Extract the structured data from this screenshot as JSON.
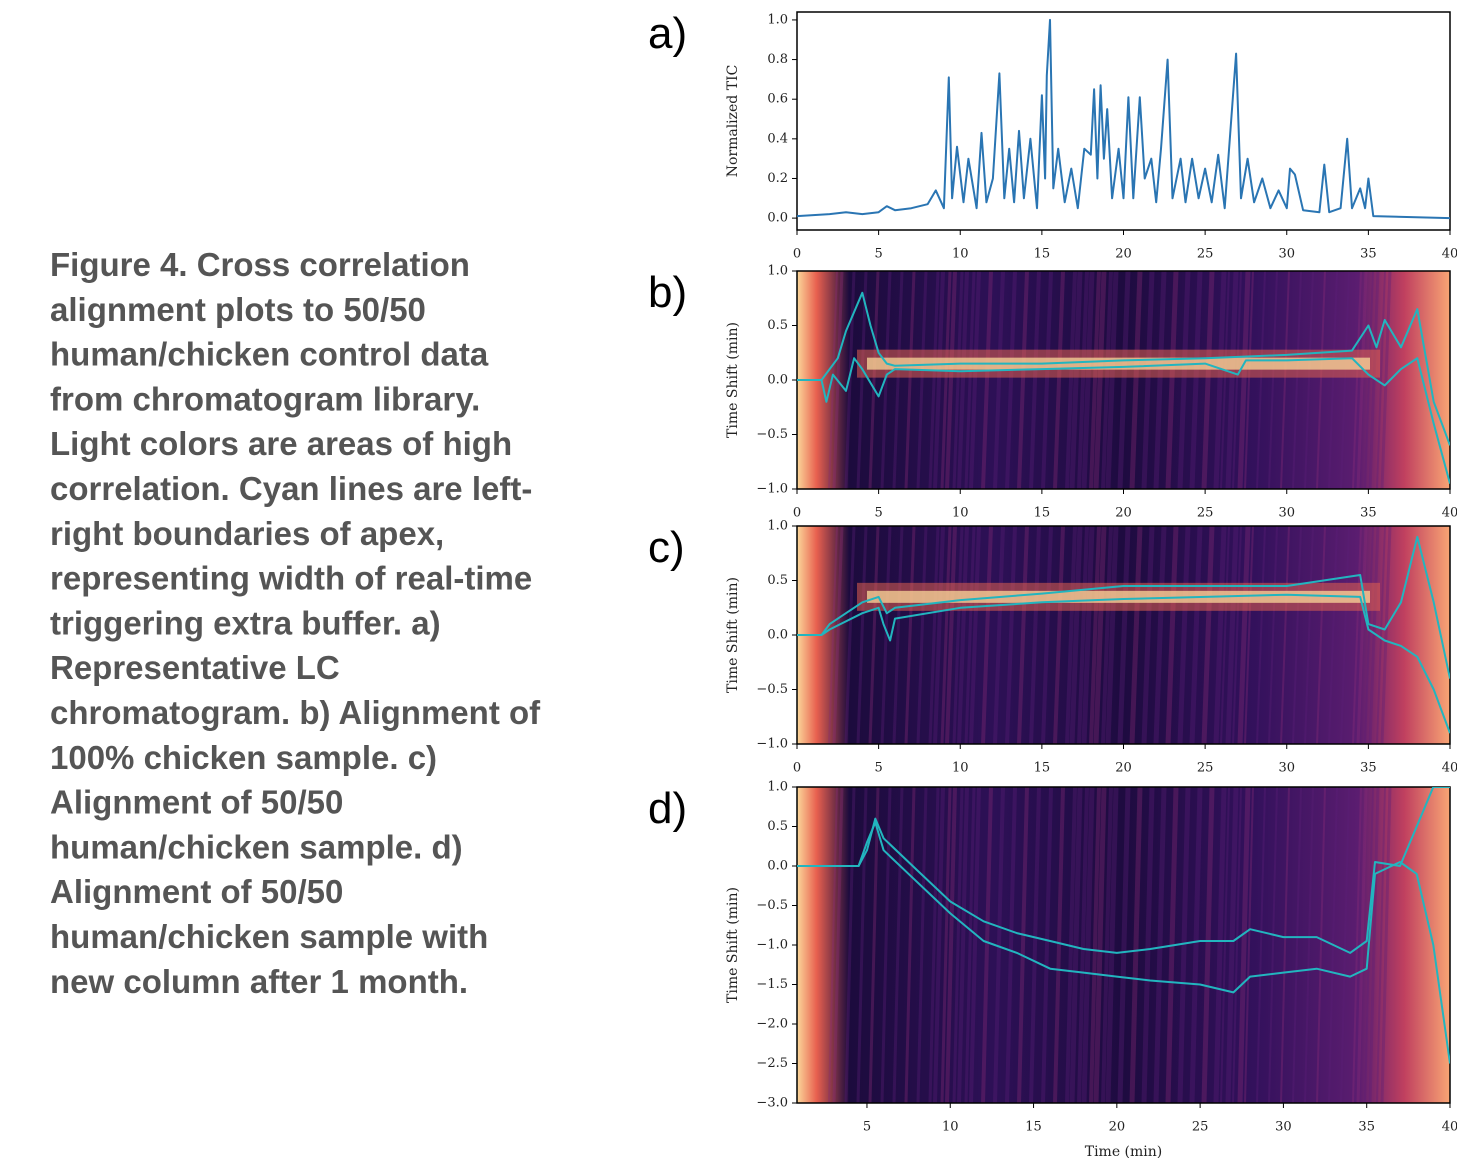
{
  "caption_lines": [
    "Figure 4.  Cross correlation",
    "alignment plots to 50/50",
    "human/chicken control data",
    "from chromatogram library.",
    "Light colors are areas of high",
    "correlation.  Cyan lines are left-",
    "right boundaries of apex,",
    "representing width of real-time",
    "triggering extra buffer.  a)",
    "Representative LC",
    "chromatogram. b) Alignment of",
    "100% chicken sample.  c)",
    "Alignment of 50/50",
    "human/chicken sample. d)",
    "Alignment of 50/50",
    "human/chicken sample with",
    "new column after 1 month."
  ],
  "chart_data": [
    {
      "type": "line",
      "label": "a)",
      "y_label": "Normalized TIC",
      "xlim": [
        0,
        40
      ],
      "ylim": [
        -0.06,
        1.04
      ],
      "xticks": [
        0,
        5,
        10,
        15,
        20,
        25,
        30,
        35,
        40
      ],
      "yticks": [
        {
          "value": 0,
          "label": "0.0"
        },
        0.2,
        0.4,
        0.6,
        0.8,
        {
          "value": 1,
          "label": "1.0"
        }
      ],
      "series": [
        {
          "color": "#2a75b3",
          "x": [
            0,
            2,
            3,
            4,
            5,
            5.5,
            6,
            7,
            8,
            8.5,
            9,
            9.3,
            9.5,
            9.8,
            10.2,
            10.5,
            11,
            11.3,
            11.6,
            12,
            12.4,
            12.7,
            13,
            13.3,
            13.6,
            13.9,
            14.3,
            14.7,
            15,
            15.2,
            15.3,
            15.5,
            15.7,
            16,
            16.4,
            16.8,
            17.2,
            17.6,
            18,
            18.2,
            18.4,
            18.6,
            18.8,
            19,
            19.3,
            19.7,
            20,
            20.3,
            20.6,
            21,
            21.3,
            21.7,
            22,
            22.3,
            22.7,
            23,
            23.5,
            23.8,
            24.2,
            24.6,
            25,
            25.4,
            25.8,
            26.2,
            26.9,
            27.2,
            27.6,
            28,
            28.5,
            29,
            29.5,
            30,
            30.2,
            30.5,
            31,
            32,
            32.3,
            32.6,
            33.3,
            33.7,
            34,
            34.5,
            34.8,
            35,
            35.3,
            40
          ],
          "values": [
            0.01,
            0.02,
            0.03,
            0.02,
            0.03,
            0.06,
            0.04,
            0.05,
            0.07,
            0.14,
            0.05,
            0.71,
            0.1,
            0.36,
            0.08,
            0.3,
            0.05,
            0.43,
            0.08,
            0.2,
            0.73,
            0.1,
            0.35,
            0.08,
            0.44,
            0.1,
            0.4,
            0.05,
            0.62,
            0.2,
            0.72,
            1.0,
            0.15,
            0.35,
            0.08,
            0.25,
            0.05,
            0.35,
            0.32,
            0.65,
            0.2,
            0.67,
            0.3,
            0.55,
            0.1,
            0.35,
            0.1,
            0.61,
            0.1,
            0.61,
            0.2,
            0.3,
            0.08,
            0.35,
            0.8,
            0.1,
            0.3,
            0.08,
            0.3,
            0.1,
            0.25,
            0.08,
            0.32,
            0.05,
            0.83,
            0.1,
            0.3,
            0.08,
            0.2,
            0.05,
            0.14,
            0.05,
            0.25,
            0.22,
            0.04,
            0.03,
            0.27,
            0.03,
            0.05,
            0.4,
            0.05,
            0.15,
            0.05,
            0.2,
            0.01,
            0.0
          ]
        }
      ]
    },
    {
      "type": "line",
      "label": "b)",
      "y_label": "Time Shift (min)",
      "xlim": [
        0,
        40
      ],
      "ylim": [
        -1,
        1
      ],
      "xticks": [
        0,
        5,
        10,
        15,
        20,
        25,
        30,
        35,
        40
      ],
      "yticks": [
        {
          "value": -1,
          "label": "−1.0"
        },
        {
          "value": -0.5,
          "label": "−0.5"
        },
        {
          "value": 0,
          "label": "0.0"
        },
        0.5,
        {
          "value": 1,
          "label": "1.0"
        }
      ],
      "series": [
        {
          "color": "#22b5bf",
          "x": [
            0,
            1.5,
            1.8,
            2.2,
            3,
            3.5,
            4,
            5,
            5.5,
            6,
            10,
            15,
            20,
            25,
            27,
            27.5,
            30,
            34,
            35,
            36,
            37,
            38,
            39,
            40
          ],
          "values": [
            0,
            0,
            -0.2,
            0.05,
            -0.1,
            0.2,
            0.1,
            -0.15,
            0.05,
            0.1,
            0.08,
            0.1,
            0.12,
            0.15,
            0.05,
            0.18,
            0.18,
            0.2,
            0.05,
            -0.05,
            0.1,
            0.2,
            -0.4,
            -0.95
          ]
        },
        {
          "color": "#22b5bf",
          "x": [
            0,
            1.5,
            2.5,
            3,
            4,
            4.5,
            5,
            5.5,
            6,
            10,
            15,
            20,
            25,
            30,
            34,
            35,
            35.5,
            36,
            37,
            38,
            39,
            40
          ],
          "values": [
            0,
            0,
            0.2,
            0.45,
            0.8,
            0.5,
            0.25,
            0.15,
            0.13,
            0.15,
            0.15,
            0.18,
            0.2,
            0.23,
            0.27,
            0.5,
            0.3,
            0.55,
            0.3,
            0.65,
            -0.2,
            -0.6
          ]
        }
      ]
    },
    {
      "type": "line",
      "label": "c)",
      "y_label": "Time Shift (min)",
      "xlim": [
        0,
        40
      ],
      "ylim": [
        -1,
        1
      ],
      "xticks": [
        0,
        5,
        10,
        15,
        20,
        25,
        30,
        35,
        40
      ],
      "yticks": [
        {
          "value": -1,
          "label": "−1.0"
        },
        {
          "value": -0.5,
          "label": "−0.5"
        },
        {
          "value": 0,
          "label": "0.0"
        },
        0.5,
        {
          "value": 1,
          "label": "1.0"
        }
      ],
      "series": [
        {
          "color": "#22b5bf",
          "x": [
            0,
            1.5,
            2,
            4,
            5,
            5.3,
            5.7,
            6,
            10,
            15,
            20,
            25,
            30,
            34.5,
            35,
            36,
            37,
            38,
            39,
            40
          ],
          "values": [
            0,
            0,
            0.05,
            0.2,
            0.25,
            0.1,
            -0.05,
            0.15,
            0.25,
            0.3,
            0.33,
            0.35,
            0.37,
            0.35,
            0.05,
            -0.05,
            -0.1,
            -0.2,
            -0.5,
            -0.9
          ]
        },
        {
          "color": "#22b5bf",
          "x": [
            0,
            1.5,
            2,
            4,
            5,
            5.5,
            6,
            10,
            15,
            20,
            25,
            30,
            34.5,
            35,
            36,
            37,
            38,
            39,
            40
          ],
          "values": [
            0,
            0,
            0.1,
            0.3,
            0.35,
            0.2,
            0.25,
            0.32,
            0.38,
            0.45,
            0.45,
            0.45,
            0.55,
            0.1,
            0.05,
            0.3,
            0.9,
            0.3,
            -0.4
          ]
        }
      ]
    },
    {
      "type": "line",
      "label": "d)",
      "y_label": "Time Shift (min)",
      "x_label": "Time (min)",
      "xlim": [
        0.8,
        40
      ],
      "ylim": [
        -3,
        1
      ],
      "xticks": [
        5,
        10,
        15,
        20,
        25,
        30,
        35,
        40
      ],
      "yticks": [
        {
          "value": -3,
          "label": "−3.0"
        },
        {
          "value": -2.5,
          "label": "−2.5"
        },
        {
          "value": -2,
          "label": "−2.0"
        },
        {
          "value": -1.5,
          "label": "−1.5"
        },
        {
          "value": -1,
          "label": "−1.0"
        },
        {
          "value": -0.5,
          "label": "−0.5"
        },
        {
          "value": 0,
          "label": "0.0"
        },
        0.5,
        {
          "value": 1,
          "label": "1.0"
        }
      ],
      "series": [
        {
          "color": "#22b5bf",
          "x": [
            0.8,
            4.5,
            5,
            5.5,
            6,
            8,
            10,
            12,
            14,
            16,
            18,
            20,
            22,
            25,
            27,
            28,
            30,
            32,
            34,
            35,
            35.5,
            37,
            38,
            39,
            40
          ],
          "values": [
            0,
            0,
            0.3,
            0.55,
            0.2,
            -0.2,
            -0.6,
            -0.95,
            -1.1,
            -1.3,
            -1.35,
            -1.4,
            -1.45,
            -1.5,
            -1.6,
            -1.4,
            -1.35,
            -1.3,
            -1.4,
            -1.3,
            -0.1,
            0.05,
            -0.1,
            -1.0,
            -2.5
          ]
        },
        {
          "color": "#22b5bf",
          "x": [
            0.8,
            4.5,
            5,
            5.5,
            6,
            8,
            10,
            12,
            14,
            16,
            18,
            20,
            22,
            25,
            27,
            28,
            30,
            32,
            34,
            35,
            35.5,
            37,
            38,
            39,
            40
          ],
          "values": [
            0,
            0,
            0.2,
            0.6,
            0.35,
            -0.05,
            -0.45,
            -0.7,
            -0.85,
            -0.95,
            -1.05,
            -1.1,
            -1.05,
            -0.95,
            -0.95,
            -0.8,
            -0.9,
            -0.9,
            -1.1,
            -0.95,
            0.05,
            0.0,
            0.5,
            1.0,
            1.0
          ]
        }
      ]
    }
  ]
}
